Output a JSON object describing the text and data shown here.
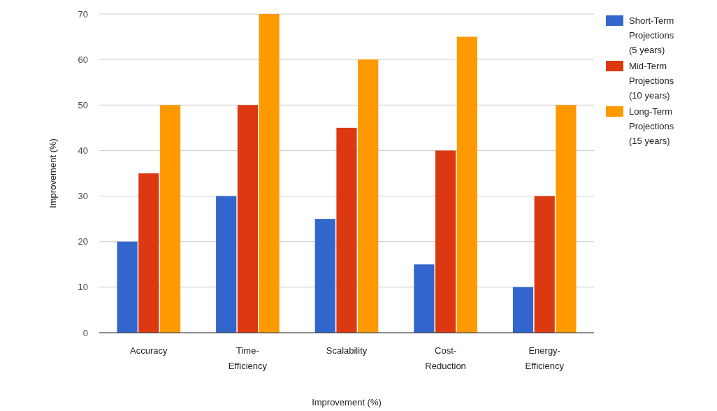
{
  "chart_data": {
    "type": "bar",
    "xlabel": "Improvement (%)",
    "ylabel": "Improvement (%)",
    "categories": [
      "Accuracy",
      "Time-Efficiency",
      "Scalability",
      "Cost-Reduction",
      "Energy-Efficiency"
    ],
    "series": [
      {
        "name": "Short-Term Projections (5 years)",
        "color": "#3366cc",
        "values": [
          20,
          30,
          25,
          15,
          10
        ]
      },
      {
        "name": "Mid-Term Projections (10 years)",
        "color": "#dc3912",
        "values": [
          35,
          50,
          45,
          40,
          30
        ]
      },
      {
        "name": "Long-Term Projections (15 years)",
        "color": "#ff9900",
        "values": [
          50,
          70,
          60,
          65,
          50
        ]
      }
    ],
    "ylim": [
      0,
      70
    ],
    "yticks": [
      0,
      10,
      20,
      30,
      40,
      50,
      60,
      70
    ],
    "grid": "y",
    "legend": "right"
  }
}
